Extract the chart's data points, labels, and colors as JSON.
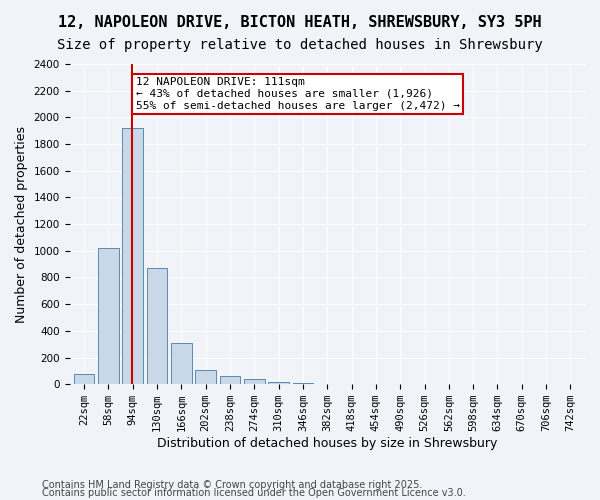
{
  "title1": "12, NAPOLEON DRIVE, BICTON HEATH, SHREWSBURY, SY3 5PH",
  "title2": "Size of property relative to detached houses in Shrewsbury",
  "xlabel": "Distribution of detached houses by size in Shrewsbury",
  "ylabel": "Number of detached properties",
  "bar_labels": [
    "22sqm",
    "58sqm",
    "94sqm",
    "130sqm",
    "166sqm",
    "202sqm",
    "238sqm",
    "274sqm",
    "310sqm",
    "346sqm",
    "382sqm",
    "418sqm",
    "454sqm",
    "490sqm",
    "526sqm",
    "562sqm",
    "598sqm",
    "634sqm",
    "670sqm",
    "706sqm",
    "742sqm"
  ],
  "bar_values": [
    75,
    1020,
    1920,
    870,
    310,
    105,
    60,
    40,
    15,
    8,
    5,
    3,
    2,
    1,
    1,
    0.5,
    0.5,
    0.5,
    0.5,
    0.5,
    0.5
  ],
  "bar_color": "#c8d8e8",
  "bar_edge_color": "#5a8ab0",
  "vline_x": 2.85,
  "vline_color": "#cc0000",
  "annotation_text": "12 NAPOLEON DRIVE: 111sqm\n← 43% of detached houses are smaller (1,926)\n55% of semi-detached houses are larger (2,472) →",
  "annotation_box_color": "#cc0000",
  "ylim": [
    0,
    2400
  ],
  "yticks": [
    0,
    200,
    400,
    600,
    800,
    1000,
    1200,
    1400,
    1600,
    1800,
    2000,
    2200,
    2400
  ],
  "footer1": "Contains HM Land Registry data © Crown copyright and database right 2025.",
  "footer2": "Contains public sector information licensed under the Open Government Licence v3.0.",
  "bg_color": "#f0f4f8",
  "plot_bg_color": "#f0f4f8",
  "title1_fontsize": 11,
  "title2_fontsize": 10,
  "xlabel_fontsize": 9,
  "ylabel_fontsize": 9,
  "tick_fontsize": 7.5,
  "footer_fontsize": 7,
  "annotation_fontsize": 8
}
